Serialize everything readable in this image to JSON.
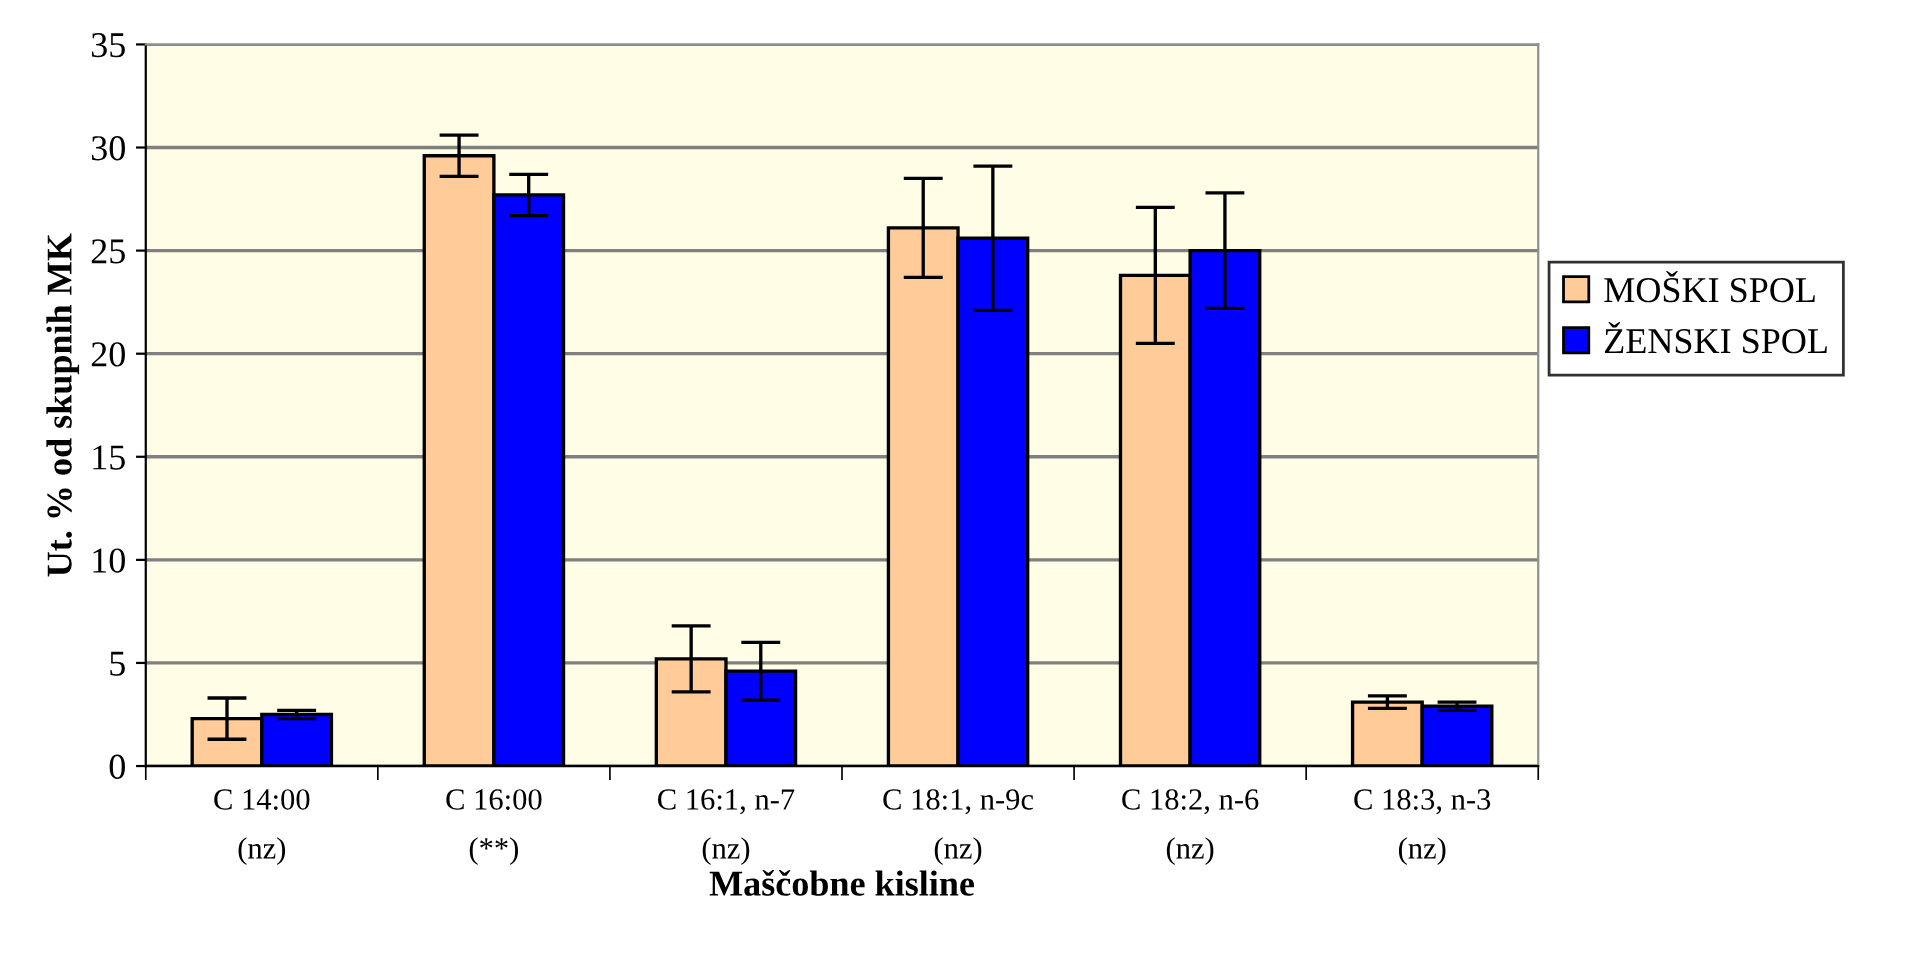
{
  "chart_data": {
    "type": "bar",
    "xlabel": "Maščobne kisline",
    "ylabel": "Ut. % od skupnih MK",
    "categories": [
      "C 14:00\n(nz)",
      "C 16:00\n(**)",
      "C 16:1, n-7\n(nz)",
      "C 18:1, n-9c\n(nz)",
      "C 18:2, n-6\n(nz)",
      "C 18:3, n-3\n(nz)"
    ],
    "series": [
      {
        "name": "MOŠKI SPOL",
        "color": "#ffcc99",
        "values": [
          2.3,
          29.6,
          5.2,
          26.1,
          23.8,
          3.1
        ],
        "errors": [
          1.0,
          1.0,
          1.6,
          2.4,
          3.3,
          0.3
        ]
      },
      {
        "name": "ŽENSKI SPOL",
        "color": "#0000ff",
        "values": [
          2.5,
          27.7,
          4.6,
          25.6,
          25.0,
          2.9
        ],
        "errors": [
          0.2,
          1.0,
          1.4,
          3.5,
          2.8,
          0.2
        ]
      }
    ],
    "ylim": [
      0,
      35
    ],
    "yticks": [
      0,
      5,
      10,
      15,
      20,
      25,
      30,
      35
    ],
    "grid": "y",
    "legend": "right"
  }
}
